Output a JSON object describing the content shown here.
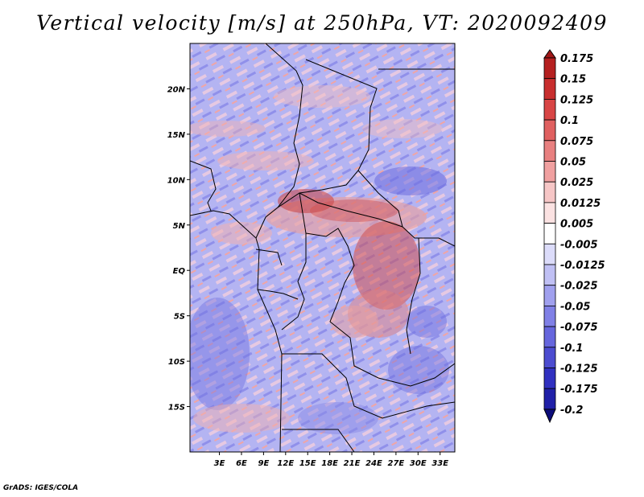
{
  "title": "Vertical velocity [m/s] at 250hPa, VT: 2020092409",
  "credit": "GrADS: IGES/COLA",
  "map": {
    "lon_range": [
      -1,
      35
    ],
    "lat_range": [
      -20,
      25
    ],
    "lon_ticks": [
      {
        "value": 3,
        "label": "3E"
      },
      {
        "value": 6,
        "label": "6E"
      },
      {
        "value": 9,
        "label": "9E"
      },
      {
        "value": 12,
        "label": "12E"
      },
      {
        "value": 15,
        "label": "15E"
      },
      {
        "value": 18,
        "label": "18E"
      },
      {
        "value": 21,
        "label": "21E"
      },
      {
        "value": 24,
        "label": "24E"
      },
      {
        "value": 27,
        "label": "27E"
      },
      {
        "value": 30,
        "label": "30E"
      },
      {
        "value": 33,
        "label": "33E"
      }
    ],
    "lat_ticks": [
      {
        "value": 20,
        "label": "20N"
      },
      {
        "value": 15,
        "label": "15N"
      },
      {
        "value": 10,
        "label": "10N"
      },
      {
        "value": 5,
        "label": "5N"
      },
      {
        "value": 0,
        "label": "EQ"
      },
      {
        "value": -5,
        "label": "5S"
      },
      {
        "value": -10,
        "label": "10S"
      },
      {
        "value": -15,
        "label": "15S"
      }
    ],
    "colorbar": {
      "labels": [
        "0.175",
        "0.15",
        "0.125",
        "0.1",
        "0.075",
        "0.05",
        "0.025",
        "0.0125",
        "0.005",
        "-0.005",
        "-0.0125",
        "-0.025",
        "-0.05",
        "-0.075",
        "-0.1",
        "-0.125",
        "-0.175",
        "-0.2"
      ],
      "colors": [
        "#a01818",
        "#b52020",
        "#c82e2e",
        "#d84545",
        "#e06060",
        "#e88080",
        "#f0a0a0",
        "#f6c6c6",
        "#fbe2e2",
        "#ffffff",
        "#dcdcfa",
        "#c0c0f4",
        "#a0a0ee",
        "#8080e6",
        "#6666dd",
        "#4c4cd0",
        "#3030c0",
        "#2020a8",
        "#0c0c7a"
      ]
    }
  }
}
